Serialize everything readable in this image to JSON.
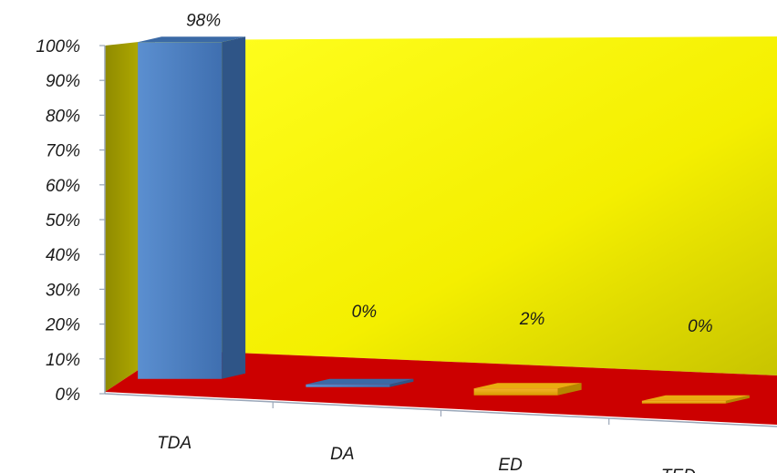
{
  "chart_data": {
    "type": "bar",
    "title": "",
    "xlabel": "",
    "ylabel": "",
    "categories": [
      "TDA",
      "DA",
      "ED",
      "TED"
    ],
    "values": [
      98,
      0,
      2,
      0
    ],
    "data_labels": [
      "98%",
      "0%",
      "2%",
      "0%"
    ],
    "yticks": [
      "0%",
      "10%",
      "20%",
      "30%",
      "40%",
      "50%",
      "60%",
      "70%",
      "80%",
      "90%",
      "100%"
    ],
    "ylim": [
      0,
      100
    ],
    "grid": false,
    "legend": "none",
    "three_d": true,
    "colors": {
      "back_wall": "#ffff00",
      "side_wall": "#b0a800",
      "floor": "#cc0000",
      "bar_blue": "#4f81bd",
      "bar_orange": "#f0b400"
    },
    "bar_colors": [
      "#4f81bd",
      "#4f81bd",
      "#f0b400",
      "#f0b400"
    ]
  }
}
